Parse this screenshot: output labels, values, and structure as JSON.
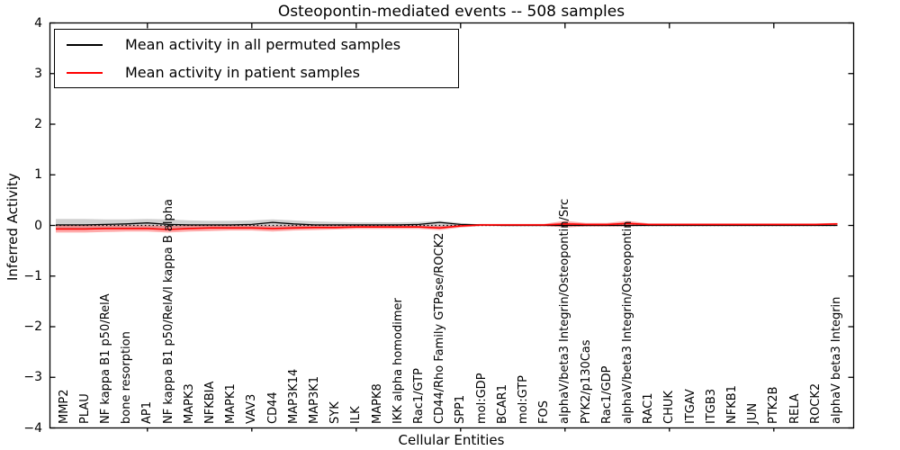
{
  "title": "Osteopontin-mediated events -- 508 samples",
  "axes": {
    "ylabel": "Inferred Activity",
    "xlabel": "Cellular Entities"
  },
  "legend": {
    "position": "upper left",
    "items": [
      {
        "label": "Mean activity in all permuted samples",
        "color": "#000000"
      },
      {
        "label": "Mean activity in patient samples",
        "color": "#ff0000"
      }
    ]
  },
  "chart_data": {
    "type": "line",
    "title": "Osteopontin-mediated events -- 508 samples",
    "xlabel": "Cellular Entities",
    "ylabel": "Inferred Activity",
    "ylim": [
      -4,
      4
    ],
    "yticks": [
      "4",
      "3",
      "2",
      "1",
      "0",
      "−1",
      "−2",
      "−3",
      "−4"
    ],
    "ytick_values": [
      4,
      3,
      2,
      1,
      0,
      -1,
      -2,
      -3,
      -4
    ],
    "xtick_label_rotation": 90,
    "xtick_mark_every": 5,
    "grid": false,
    "zero_line": {
      "style": "dotted",
      "color": "#000000",
      "y": 0
    },
    "categories": [
      "MMP2",
      "PLAU",
      "NF kappa B1 p50/RelA",
      "bone resorption",
      "AP1",
      "NF kappa B1 p50/RelA/I kappa B alpha",
      "MAPK3",
      "NFKBIA",
      "MAPK1",
      "VAV3",
      "CD44",
      "MAP3K14",
      "MAP3K1",
      "SYK",
      "ILK",
      "MAPK8",
      "IKK alpha homodimer",
      "Rac1/GTP",
      "CD44/Rho Family GTPase/ROCK2",
      "SPP1",
      "mol:GDP",
      "BCAR1",
      "mol:GTP",
      "FOS",
      "alphaV/beta3 Integrin/Osteopontin/Src",
      "PYK2/p130Cas",
      "Rac1/GDP",
      "alphaV/beta3 Integrin/Osteopontin",
      "RAC1",
      "CHUK",
      "ITGAV",
      "ITGB3",
      "NFKB1",
      "JUN",
      "PTK2B",
      "RELA",
      "ROCK2",
      "alphaV beta3 Integrin"
    ],
    "series": [
      {
        "name": "Mean activity in all permuted samples",
        "color": "#000000",
        "line_width": 1.3,
        "values": [
          0.01,
          0.01,
          0.02,
          0.03,
          0.05,
          0.02,
          0.01,
          0.01,
          0.01,
          0.02,
          0.06,
          0.03,
          0.01,
          0.01,
          0.01,
          0.01,
          0.01,
          0.02,
          0.06,
          0.02,
          0.01,
          0.0,
          0.0,
          0.0,
          0.0,
          0.0,
          0.0,
          0.0,
          0.0,
          0.0,
          0.0,
          0.0,
          0.0,
          0.0,
          0.0,
          0.0,
          0.0,
          0.0
        ]
      },
      {
        "name": "Mean activity in patient samples",
        "color": "#ff0000",
        "line_width": 1.6,
        "values": [
          -0.07,
          -0.07,
          -0.06,
          -0.06,
          -0.06,
          -0.08,
          -0.06,
          -0.05,
          -0.05,
          -0.05,
          -0.06,
          -0.05,
          -0.04,
          -0.04,
          -0.03,
          -0.03,
          -0.03,
          -0.03,
          -0.05,
          -0.01,
          0.01,
          0.01,
          0.01,
          0.01,
          0.03,
          0.02,
          0.02,
          0.04,
          0.02,
          0.02,
          0.02,
          0.02,
          0.02,
          0.02,
          0.02,
          0.02,
          0.02,
          0.03
        ]
      }
    ],
    "bands": [
      {
        "name": "permuted-samples-band",
        "color": "#aaaaaa",
        "opacity": 0.55,
        "upper": [
          0.13,
          0.13,
          0.12,
          0.12,
          0.13,
          0.12,
          0.1,
          0.09,
          0.09,
          0.1,
          0.12,
          0.1,
          0.08,
          0.07,
          0.06,
          0.06,
          0.06,
          0.07,
          0.09,
          0.05,
          0.02,
          0.02,
          0.02,
          0.02,
          0.02,
          0.02,
          0.02,
          0.02,
          0.01,
          0.01,
          0.01,
          0.01,
          0.01,
          0.01,
          0.01,
          0.01,
          0.01,
          0.01
        ],
        "lower": [
          -0.07,
          -0.07,
          -0.07,
          -0.06,
          -0.05,
          -0.06,
          -0.06,
          -0.06,
          -0.05,
          -0.05,
          -0.04,
          -0.04,
          -0.04,
          -0.04,
          -0.03,
          -0.03,
          -0.03,
          -0.03,
          -0.03,
          -0.02,
          -0.01,
          -0.01,
          -0.01,
          -0.01,
          -0.01,
          -0.01,
          -0.01,
          -0.01,
          -0.01,
          -0.01,
          -0.01,
          -0.01,
          -0.01,
          -0.01,
          -0.01,
          -0.01,
          -0.01,
          -0.01
        ]
      },
      {
        "name": "patient-samples-band",
        "color": "#ff4444",
        "opacity": 0.45,
        "upper": [
          0.0,
          0.0,
          0.0,
          0.0,
          0.0,
          -0.01,
          0.0,
          0.0,
          0.0,
          0.0,
          -0.01,
          0.0,
          0.0,
          0.0,
          0.0,
          0.0,
          0.0,
          0.0,
          -0.01,
          0.01,
          0.03,
          0.03,
          0.03,
          0.03,
          0.09,
          0.05,
          0.05,
          0.09,
          0.04,
          0.04,
          0.04,
          0.04,
          0.04,
          0.04,
          0.04,
          0.04,
          0.04,
          0.05
        ],
        "lower": [
          -0.14,
          -0.14,
          -0.13,
          -0.12,
          -0.12,
          -0.14,
          -0.12,
          -0.11,
          -0.1,
          -0.1,
          -0.12,
          -0.1,
          -0.09,
          -0.08,
          -0.07,
          -0.07,
          -0.07,
          -0.07,
          -0.09,
          -0.04,
          -0.01,
          -0.01,
          -0.01,
          -0.01,
          -0.04,
          -0.02,
          -0.02,
          -0.02,
          0.0,
          0.0,
          0.0,
          0.0,
          0.0,
          0.0,
          0.0,
          0.0,
          0.0,
          0.01
        ]
      }
    ]
  }
}
